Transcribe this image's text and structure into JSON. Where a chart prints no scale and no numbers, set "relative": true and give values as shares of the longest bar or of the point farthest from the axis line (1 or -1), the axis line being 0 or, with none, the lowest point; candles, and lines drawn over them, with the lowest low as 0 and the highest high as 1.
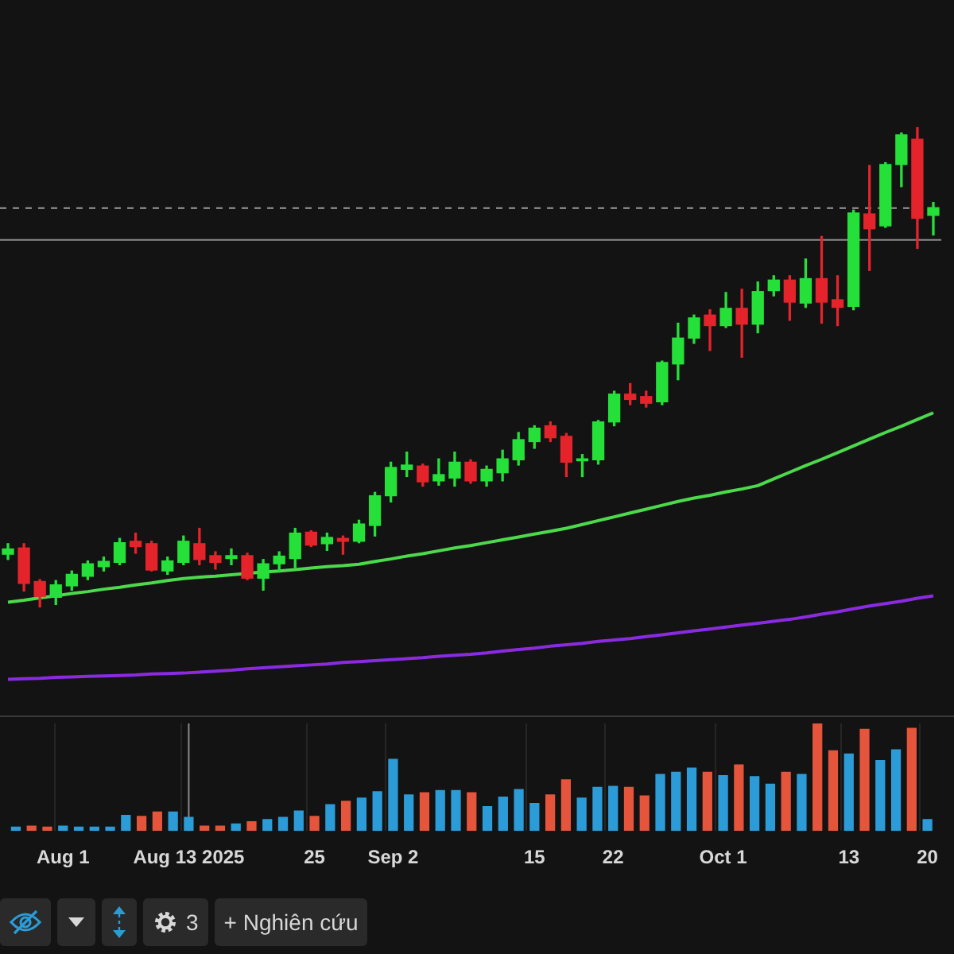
{
  "chart_data": [
    {
      "type": "candlestick",
      "relative": true,
      "tick_labels": false,
      "categories": [
        null,
        null,
        null,
        null,
        null,
        null,
        null,
        null,
        null,
        null,
        null,
        null,
        null,
        null,
        null,
        null,
        null,
        null,
        null,
        null,
        null,
        null,
        null,
        null,
        null,
        null,
        null,
        null,
        null,
        null,
        null,
        null,
        null,
        null,
        null,
        null,
        null,
        null,
        null,
        null,
        null,
        null,
        null,
        null,
        null,
        null,
        null,
        null,
        null,
        null,
        null,
        null,
        null,
        null,
        null,
        null,
        null,
        null,
        null
      ],
      "ohlc": [
        [
          0.11,
          0.132,
          0.099,
          0.121
        ],
        [
          0.123,
          0.132,
          0.033,
          0.049
        ],
        [
          0.053,
          0.057,
          0,
          0.022
        ],
        [
          0.02,
          0.055,
          0.005,
          0.046
        ],
        [
          0.044,
          0.075,
          0.035,
          0.068
        ],
        [
          0.064,
          0.096,
          0.057,
          0.09
        ],
        [
          0.084,
          0.104,
          0.075,
          0.095
        ],
        [
          0.093,
          0.143,
          0.088,
          0.134
        ],
        [
          0.137,
          0.154,
          0.112,
          0.126
        ],
        [
          0.132,
          0.137,
          0.075,
          0.077
        ],
        [
          0.075,
          0.104,
          0.068,
          0.096
        ],
        [
          0.093,
          0.148,
          0.088,
          0.137
        ],
        [
          0.132,
          0.164,
          0.088,
          0.099
        ],
        [
          0.107,
          0.115,
          0.079,
          0.093
        ],
        [
          0.101,
          0.121,
          0.088,
          0.107
        ],
        [
          0.107,
          0.112,
          0.057,
          0.06
        ],
        [
          0.06,
          0.099,
          0.035,
          0.09
        ],
        [
          0.09,
          0.115,
          0.075,
          0.106
        ],
        [
          0.101,
          0.164,
          0.082,
          0.154
        ],
        [
          0.156,
          0.159,
          0.126,
          0.129
        ],
        [
          0.132,
          0.154,
          0.118,
          0.145
        ],
        [
          0.143,
          0.148,
          0.11,
          0.137
        ],
        [
          0.137,
          0.181,
          0.134,
          0.173
        ],
        [
          0.17,
          0.239,
          0.148,
          0.232
        ],
        [
          0.232,
          0.302,
          0.219,
          0.291
        ],
        [
          0.287,
          0.323,
          0.272,
          0.296
        ],
        [
          0.294,
          0.298,
          0.252,
          0.261
        ],
        [
          0.263,
          0.309,
          0.254,
          0.276
        ],
        [
          0.269,
          0.323,
          0.252,
          0.302
        ],
        [
          0.302,
          0.307,
          0.258,
          0.263
        ],
        [
          0.263,
          0.294,
          0.252,
          0.287
        ],
        [
          0.28,
          0.327,
          0.263,
          0.309
        ],
        [
          0.307,
          0.364,
          0.296,
          0.349
        ],
        [
          0.345,
          0.378,
          0.331,
          0.373
        ],
        [
          0.378,
          0.386,
          0.345,
          0.353
        ],
        [
          0.356,
          0.362,
          0.272,
          0.302
        ],
        [
          0.305,
          0.318,
          0.272,
          0.309
        ],
        [
          0.307,
          0.389,
          0.298,
          0.386
        ],
        [
          0.386,
          0.45,
          0.378,
          0.444
        ],
        [
          0.444,
          0.466,
          0.422,
          0.433
        ],
        [
          0.439,
          0.45,
          0.417,
          0.425
        ],
        [
          0.428,
          0.513,
          0.422,
          0.51
        ],
        [
          0.507,
          0.592,
          0.474,
          0.561
        ],
        [
          0.561,
          0.609,
          0.55,
          0.603
        ],
        [
          0.609,
          0.62,
          0.535,
          0.587
        ],
        [
          0.587,
          0.656,
          0.583,
          0.623
        ],
        [
          0.623,
          0.663,
          0.521,
          0.59
        ],
        [
          0.59,
          0.678,
          0.572,
          0.658
        ],
        [
          0.66,
          0.691,
          0.649,
          0.682
        ],
        [
          0.682,
          0.691,
          0.598,
          0.636
        ],
        [
          0.634,
          0.726,
          0.625,
          0.685
        ],
        [
          0.685,
          0.773,
          0.592,
          0.636
        ],
        [
          0.641,
          0.691,
          0.587,
          0.625
        ],
        [
          0.627,
          0.828,
          0.62,
          0.822
        ],
        [
          0.82,
          0.921,
          0.702,
          0.789
        ],
        [
          0.795,
          0.927,
          0.792,
          0.923
        ],
        [
          0.923,
          0.989,
          0.877,
          0.985
        ],
        [
          0.976,
          1,
          0.748,
          0.811
        ],
        [
          0.817,
          0.844,
          0.776,
          0.833
        ]
      ],
      "colors": [
        "#26e03a",
        "#e5232b",
        "#e5232b",
        "#26e03a",
        "#26e03a",
        "#26e03a",
        "#26e03a",
        "#26e03a",
        "#e5232b",
        "#e5232b",
        "#26e03a",
        "#26e03a",
        "#e5232b",
        "#e5232b",
        "#26e03a",
        "#e5232b",
        "#26e03a",
        "#26e03a",
        "#26e03a",
        "#e5232b",
        "#26e03a",
        "#e5232b",
        "#26e03a",
        "#26e03a",
        "#26e03a",
        "#26e03a",
        "#e5232b",
        "#26e03a",
        "#26e03a",
        "#e5232b",
        "#26e03a",
        "#26e03a",
        "#26e03a",
        "#26e03a",
        "#e5232b",
        "#e5232b",
        "#26e03a",
        "#26e03a",
        "#26e03a",
        "#e5232b",
        "#e5232b",
        "#26e03a",
        "#26e03a",
        "#26e03a",
        "#e5232b",
        "#26e03a",
        "#e5232b",
        "#26e03a",
        "#26e03a",
        "#e5232b",
        "#26e03a",
        "#e5232b",
        "#e5232b",
        "#26e03a",
        "#e5232b",
        "#26e03a",
        "#26e03a",
        "#e5232b",
        "#26e03a"
      ],
      "series": [
        {
          "type": "line",
          "color": "#4cd94c",
          "values": [
            0.01,
            0.014,
            0.019,
            0.023,
            0.028,
            0.032,
            0.037,
            0.041,
            0.046,
            0.05,
            0.055,
            0.059,
            0.062,
            0.064,
            0.067,
            0.07,
            0.073,
            0.075,
            0.078,
            0.081,
            0.084,
            0.086,
            0.089,
            0.095,
            0.1,
            0.106,
            0.111,
            0.117,
            0.123,
            0.128,
            0.134,
            0.14,
            0.146,
            0.152,
            0.158,
            0.164,
            0.172,
            0.18,
            0.188,
            0.196,
            0.204,
            0.212,
            0.22,
            0.227,
            0.233,
            0.24,
            0.246,
            0.253,
            0.267,
            0.281,
            0.295,
            0.308,
            0.322,
            0.336,
            0.35,
            0.364,
            0.377,
            0.391,
            0.405
          ]
        },
        {
          "type": "line",
          "color": "#8a2be2",
          "values": [
            -0.151,
            -0.15,
            -0.149,
            -0.147,
            -0.146,
            -0.145,
            -0.144,
            -0.143,
            -0.142,
            -0.14,
            -0.139,
            -0.138,
            -0.136,
            -0.134,
            -0.132,
            -0.129,
            -0.127,
            -0.125,
            -0.123,
            -0.121,
            -0.119,
            -0.116,
            -0.114,
            -0.112,
            -0.11,
            -0.108,
            -0.106,
            -0.103,
            -0.101,
            -0.099,
            -0.096,
            -0.092,
            -0.089,
            -0.086,
            -0.082,
            -0.079,
            -0.076,
            -0.072,
            -0.069,
            -0.066,
            -0.062,
            -0.058,
            -0.054,
            -0.05,
            -0.046,
            -0.042,
            -0.038,
            -0.034,
            -0.03,
            -0.026,
            -0.021,
            -0.015,
            -0.01,
            -0.004,
            0.002,
            0.007,
            0.012,
            0.018,
            0.023
          ]
        }
      ],
      "marker": "none",
      "ref_lines": [
        {
          "axis": "y",
          "value": 0.832,
          "color": "#9a9a9a",
          "line_style": "dashed"
        },
        {
          "axis": "y",
          "value": 0.766,
          "color": "#8a8a8a",
          "line_style": "solid"
        }
      ]
    },
    {
      "type": "bar",
      "relative": true,
      "tick_labels": "x",
      "grid": "x",
      "categories": [
        null,
        null,
        null,
        "Aug 1",
        null,
        null,
        null,
        null,
        null,
        null,
        null,
        "Aug 13 2025",
        null,
        null,
        null,
        null,
        null,
        null,
        null,
        "25",
        null,
        null,
        null,
        null,
        "Sep 2",
        null,
        null,
        null,
        null,
        null,
        null,
        null,
        null,
        "15",
        null,
        null,
        null,
        null,
        "22",
        null,
        null,
        null,
        null,
        null,
        null,
        "Oct 1",
        null,
        null,
        null,
        null,
        null,
        null,
        null,
        "13",
        null,
        null,
        null,
        null,
        "20"
      ],
      "values": [
        0.04,
        0.05,
        0.04,
        0.05,
        0.04,
        0.04,
        0.04,
        0.15,
        0.14,
        0.18,
        0.18,
        0.13,
        0.05,
        0.05,
        0.07,
        0.09,
        0.11,
        0.13,
        0.19,
        0.14,
        0.25,
        0.28,
        0.31,
        0.37,
        0.67,
        0.34,
        0.36,
        0.38,
        0.38,
        0.36,
        0.23,
        0.32,
        0.39,
        0.26,
        0.34,
        0.48,
        0.31,
        0.41,
        0.42,
        0.41,
        0.33,
        0.53,
        0.55,
        0.59,
        0.55,
        0.52,
        0.62,
        0.51,
        0.44,
        0.55,
        0.53,
        1.0,
        0.75,
        0.72,
        0.95,
        0.66,
        0.76,
        0.96,
        0.11
      ],
      "colors": [
        "#2b9cd8",
        "#e4553c",
        "#e4553c",
        "#2b9cd8",
        "#2b9cd8",
        "#2b9cd8",
        "#2b9cd8",
        "#2b9cd8",
        "#e4553c",
        "#e4553c",
        "#2b9cd8",
        "#2b9cd8",
        "#e4553c",
        "#e4553c",
        "#2b9cd8",
        "#e4553c",
        "#2b9cd8",
        "#2b9cd8",
        "#2b9cd8",
        "#e4553c",
        "#2b9cd8",
        "#e4553c",
        "#2b9cd8",
        "#2b9cd8",
        "#2b9cd8",
        "#2b9cd8",
        "#e4553c",
        "#2b9cd8",
        "#2b9cd8",
        "#e4553c",
        "#2b9cd8",
        "#2b9cd8",
        "#2b9cd8",
        "#2b9cd8",
        "#e4553c",
        "#e4553c",
        "#2b9cd8",
        "#2b9cd8",
        "#2b9cd8",
        "#e4553c",
        "#e4553c",
        "#2b9cd8",
        "#2b9cd8",
        "#2b9cd8",
        "#e4553c",
        "#2b9cd8",
        "#e4553c",
        "#2b9cd8",
        "#2b9cd8",
        "#e4553c",
        "#2b9cd8",
        "#e4553c",
        "#e4553c",
        "#2b9cd8",
        "#e4553c",
        "#2b9cd8",
        "#2b9cd8",
        "#e4553c",
        "#2b9cd8"
      ],
      "ref_lines": [
        {
          "axis": "x",
          "value": "Aug 13 2025",
          "color": "#8a8a8a",
          "line_style": "solid"
        }
      ],
      "annotations": [
        "3",
        "+ Nghiên cứu"
      ]
    }
  ]
}
